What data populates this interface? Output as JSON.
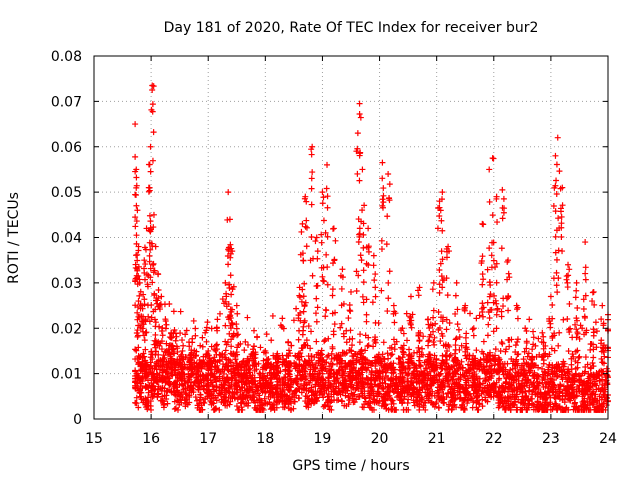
{
  "chart_data": {
    "type": "scatter",
    "title": "Day 181 of 2020, Rate Of TEC Index for receiver bur2",
    "xlabel": "GPS time / hours",
    "ylabel": "ROTI / TECUs",
    "xlim": [
      15,
      24
    ],
    "ylim": [
      0,
      0.08
    ],
    "x_ticks": [
      "15",
      "16",
      "17",
      "18",
      "19",
      "20",
      "21",
      "22",
      "23",
      "24"
    ],
    "y_ticks": [
      "0",
      "0.01",
      "0.02",
      "0.03",
      "0.04",
      "0.05",
      "0.06",
      "0.07",
      "0.08"
    ],
    "grid": true,
    "marker": "+",
    "color": "#ff0000",
    "series": [
      {
        "x": [
          15.72,
          15.74,
          15.76,
          15.78,
          15.8,
          15.84,
          15.88,
          15.92,
          15.96,
          15.99,
          16.02,
          16.05,
          16.08,
          16.12,
          16.18,
          16.25,
          16.35,
          16.45,
          16.55,
          16.7,
          16.85,
          17.0,
          17.15,
          17.3,
          17.35,
          17.38,
          17.42,
          17.5,
          17.65,
          17.8,
          18.0,
          18.2,
          18.4,
          18.6,
          18.65,
          18.7,
          18.82,
          18.9,
          19.0,
          19.08,
          19.2,
          19.35,
          19.5,
          19.62,
          19.65,
          19.7,
          19.8,
          19.9,
          20.05,
          20.15,
          20.25,
          20.4,
          20.55,
          20.7,
          20.85,
          20.95,
          21.05,
          21.1,
          21.2,
          21.35,
          21.5,
          21.65,
          21.8,
          21.92,
          21.98,
          22.05,
          22.15,
          22.25,
          22.4,
          22.55,
          22.7,
          22.85,
          23.0,
          23.08,
          23.12,
          23.2,
          23.3,
          23.45,
          23.6,
          23.75,
          23.9,
          24.0
        ],
        "y": [
          0.065,
          0.055,
          0.046,
          0.038,
          0.03,
          0.025,
          0.035,
          0.042,
          0.051,
          0.06,
          0.0735,
          0.045,
          0.038,
          0.032,
          0.027,
          0.022,
          0.019,
          0.016,
          0.015,
          0.014,
          0.013,
          0.015,
          0.02,
          0.03,
          0.05,
          0.044,
          0.037,
          0.025,
          0.017,
          0.016,
          0.015,
          0.014,
          0.017,
          0.029,
          0.043,
          0.049,
          0.06,
          0.04,
          0.05,
          0.056,
          0.042,
          0.033,
          0.028,
          0.063,
          0.0695,
          0.055,
          0.042,
          0.036,
          0.0565,
          0.054,
          0.025,
          0.02,
          0.027,
          0.029,
          0.022,
          0.03,
          0.048,
          0.05,
          0.038,
          0.03,
          0.025,
          0.02,
          0.043,
          0.055,
          0.0575,
          0.049,
          0.0505,
          0.035,
          0.025,
          0.02,
          0.018,
          0.019,
          0.027,
          0.058,
          0.062,
          0.051,
          0.034,
          0.03,
          0.039,
          0.028,
          0.025,
          0.023
        ]
      },
      {
        "x": [
          15.75,
          15.85,
          15.95,
          16.05,
          16.15,
          16.25,
          16.35,
          16.45,
          16.55,
          16.65,
          16.75,
          16.85,
          16.95,
          17.05,
          17.15,
          17.25,
          17.35,
          17.45,
          17.55,
          17.65,
          17.75,
          17.85,
          17.95,
          18.05,
          18.15,
          18.25,
          18.35,
          18.45,
          18.55,
          18.65,
          18.75,
          18.85,
          18.95,
          19.05,
          19.15,
          19.25,
          19.35,
          19.45,
          19.55,
          19.65,
          19.75,
          19.85,
          19.95,
          20.05,
          20.15,
          20.25,
          20.35,
          20.45,
          20.55,
          20.65,
          20.75,
          20.85,
          20.95,
          21.05,
          21.15,
          21.25,
          21.35,
          21.45,
          21.55,
          21.65,
          21.75,
          21.85,
          21.95,
          22.05,
          22.15,
          22.25,
          22.35,
          22.45,
          22.55,
          22.65,
          22.75,
          22.85,
          22.95,
          23.05,
          23.15,
          23.25,
          23.35,
          23.45,
          23.55,
          23.65,
          23.75,
          23.85,
          23.95
        ],
        "y": [
          0.008,
          0.009,
          0.007,
          0.01,
          0.009,
          0.008,
          0.011,
          0.007,
          0.009,
          0.008,
          0.01,
          0.007,
          0.009,
          0.008,
          0.007,
          0.009,
          0.008,
          0.01,
          0.007,
          0.008,
          0.009,
          0.007,
          0.006,
          0.008,
          0.007,
          0.009,
          0.008,
          0.007,
          0.009,
          0.011,
          0.008,
          0.009,
          0.01,
          0.008,
          0.007,
          0.009,
          0.008,
          0.007,
          0.009,
          0.01,
          0.008,
          0.007,
          0.009,
          0.008,
          0.007,
          0.006,
          0.008,
          0.007,
          0.009,
          0.008,
          0.007,
          0.009,
          0.008,
          0.007,
          0.009,
          0.006,
          0.008,
          0.007,
          0.009,
          0.008,
          0.007,
          0.009,
          0.01,
          0.008,
          0.007,
          0.006,
          0.008,
          0.007,
          0.006,
          0.008,
          0.007,
          0.005,
          0.006,
          0.007,
          0.006,
          0.005,
          0.007,
          0.006,
          0.005,
          0.007,
          0.006,
          0.005,
          0.006
        ]
      }
    ]
  }
}
